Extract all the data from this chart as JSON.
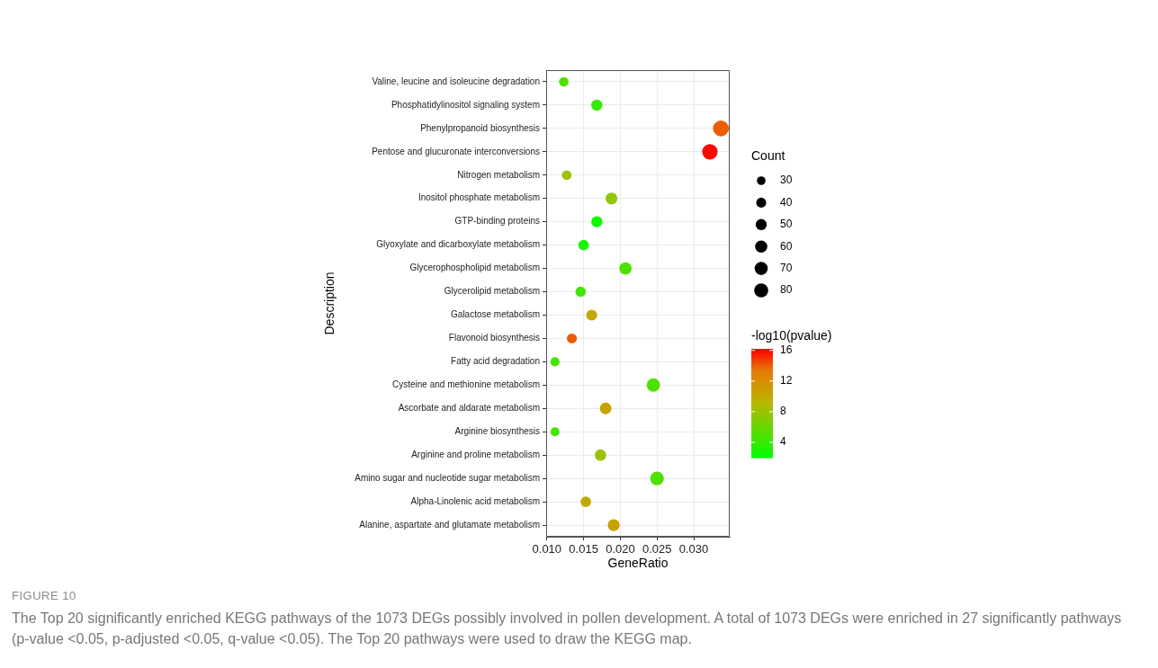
{
  "chart_data": {
    "type": "bubble",
    "categories": [
      "Valine, leucine and isoleucine degradation",
      "Phosphatidylinositol signaling system",
      "Phenylpropanoid biosynthesis",
      "Pentose and glucuronate interconversions",
      "Nitrogen metabolism",
      "Inositol phosphate metabolism",
      "GTP-binding proteins",
      "Glyoxylate and dicarboxylate metabolism",
      "Glycerophospholipid metabolism",
      "Glycerolipid metabolism",
      "Galactose metabolism",
      "Flavonoid biosynthesis",
      "Fatty acid degradation",
      "Cysteine and methionine metabolism",
      "Ascorbate and aldarate metabolism",
      "Arginine biosynthesis",
      "Arginine and proline metabolism",
      "Amino sugar and nucleotide sugar metabolism",
      "Alpha-Linolenic acid metabolism",
      "Alanine, aspartate and glutamate metabolism"
    ],
    "values": [
      0.0123,
      0.0168,
      0.0337,
      0.0322,
      0.0127,
      0.0188,
      0.0168,
      0.015,
      0.0207,
      0.0146,
      0.0161,
      0.0134,
      0.0111,
      0.0245,
      0.018,
      0.0111,
      0.0173,
      0.025,
      0.0153,
      0.0191
    ],
    "sizes": [
      31,
      43,
      86,
      82,
      32,
      48,
      43,
      38,
      53,
      37,
      41,
      34,
      28,
      62,
      46,
      28,
      44,
      64,
      39,
      49
    ],
    "size_legend": [
      30,
      40,
      50,
      60,
      70,
      80
    ],
    "cvalues": [
      5,
      4,
      14,
      16,
      8,
      7.5,
      2.5,
      3,
      5,
      4.5,
      10,
      14,
      4.5,
      5,
      10.5,
      4.5,
      8,
      5,
      10,
      10.5
    ],
    "clim": [
      2,
      16.2
    ],
    "cticks": [
      4,
      8,
      12,
      16
    ],
    "orientation": "horizontal",
    "xlim": [
      0.0099,
      0.0349
    ],
    "xticks": [
      {
        "value": 0.01,
        "label": "0.010"
      },
      {
        "value": 0.015,
        "label": "0.015"
      },
      {
        "value": 0.02,
        "label": "0.020"
      },
      {
        "value": 0.025,
        "label": "0.025"
      },
      {
        "value": 0.03,
        "label": "0.030"
      }
    ],
    "xlabel": "GeneRatio",
    "ylabel": "Description",
    "legend_title": "Count",
    "clabel": "-log10(pvalue)",
    "grid": true,
    "annotations": [
      "FIGURE 10",
      "The Top 20 significantly enriched KEGG pathways of the 1073 DEGs possibly involved in pollen development. A total of 1073 DEGs were enriched in 27 significantly pathways (p-value <0.05, p-adjusted <0.05, q-value <0.05). The Top 20 pathways were used to draw the KEGG map."
    ]
  }
}
